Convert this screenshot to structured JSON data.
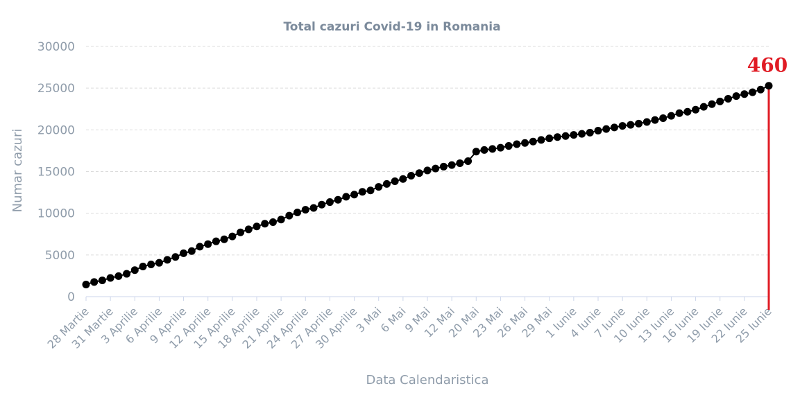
{
  "chart_data": {
    "type": "line",
    "title": "Total cazuri Covid-19 in Romania",
    "xlabel": "Data Calendaristica",
    "ylabel": "Numar cazuri",
    "ylim": [
      0,
      30000
    ],
    "yticks": [
      "0",
      "5000",
      "10000",
      "15000",
      "20000",
      "25000",
      "30000"
    ],
    "grid": true,
    "x_tick_labels": [
      "28 Martie",
      "31 Martie",
      "3 Aprilie",
      "6 Aprilie",
      "9 Aprilie",
      "12 Aprilie",
      "15 Aprilie",
      "18 Aprilie",
      "21 Aprilie",
      "24 Aprilie",
      "27 Aprilie",
      "30 Aprilie",
      "3 Mai",
      "6 Mai",
      "9 Mai",
      "12 Mai",
      "20 Mai",
      "23 Mai",
      "26 Mai",
      "29 Mai",
      "1 Iunie",
      "4 Iunie",
      "7 Iunie",
      "10 Iunie",
      "13 Iunie",
      "16 Iunie",
      "19 Iunie",
      "22 Iunie",
      "25 Iunie"
    ],
    "series": [
      {
        "color": "#000000",
        "values": [
          1452,
          1760,
          1952,
          2245,
          2460,
          2738,
          3183,
          3613,
          3864,
          4057,
          4417,
          4761,
          5202,
          5467,
          5990,
          6300,
          6633,
          6879,
          7216,
          7707,
          8067,
          8418,
          8746,
          8936,
          9242,
          9710,
          10096,
          10417,
          10635,
          11036,
          11339,
          11616,
          11978,
          12240,
          12567,
          12732,
          13163,
          13512,
          13837,
          14107,
          14499,
          14811,
          15131,
          15362,
          15588,
          15778,
          16002,
          16247,
          17389,
          17585,
          17712,
          17857,
          18070,
          18283,
          18429,
          18594,
          18791,
          18982,
          19133,
          19257,
          19398,
          19517,
          19669,
          19907,
          20103,
          20290,
          20479,
          20604,
          20749,
          20945,
          21182,
          21404,
          21679,
          21999,
          22165,
          22415,
          22760,
          23080,
          23400,
          23730,
          24045,
          24291,
          24505,
          24826,
          25286
        ]
      }
    ],
    "annotation": {
      "text": "460",
      "color": "#e01b24"
    }
  }
}
